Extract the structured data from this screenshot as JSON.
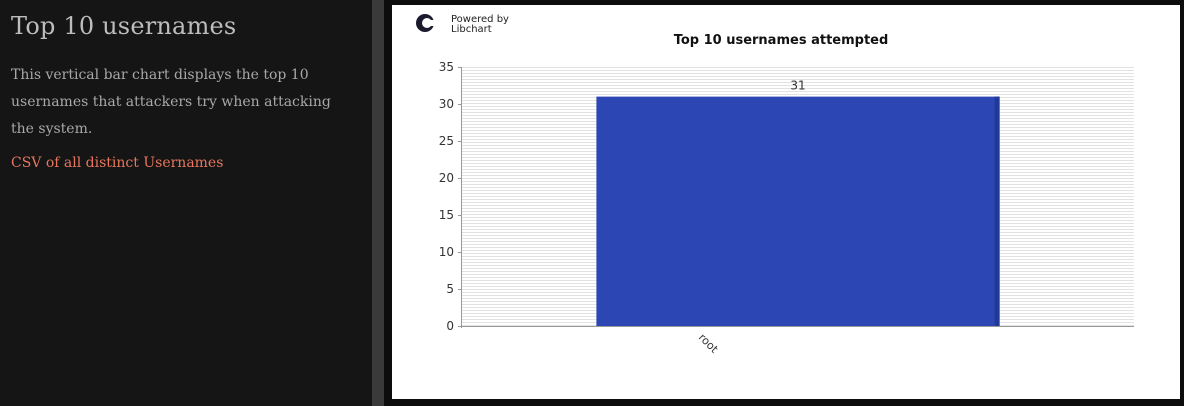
{
  "sidebar": {
    "title": "Top 10 usernames",
    "description": "This vertical bar chart displays the top 10 usernames that attackers try when attacking the system.",
    "csv_link": "CSV of all distinct Usernames"
  },
  "branding": {
    "powered_by": "Powered by",
    "product": "Libchart",
    "logo_icon": "libchart-logo-icon"
  },
  "colors": {
    "bar": "#2c47b4",
    "link": "#e8765e",
    "page_bg": "#151515"
  },
  "chart_data": {
    "type": "bar",
    "title": "Top 10 usernames attempted",
    "categories": [
      "root"
    ],
    "values": [
      31
    ],
    "data_labels": [
      "31"
    ],
    "xlabel": "",
    "ylabel": "",
    "ylim": [
      0,
      35
    ],
    "yticks": [
      0,
      5,
      10,
      15,
      20,
      25,
      30,
      35
    ],
    "grid": true,
    "legend": "none"
  }
}
